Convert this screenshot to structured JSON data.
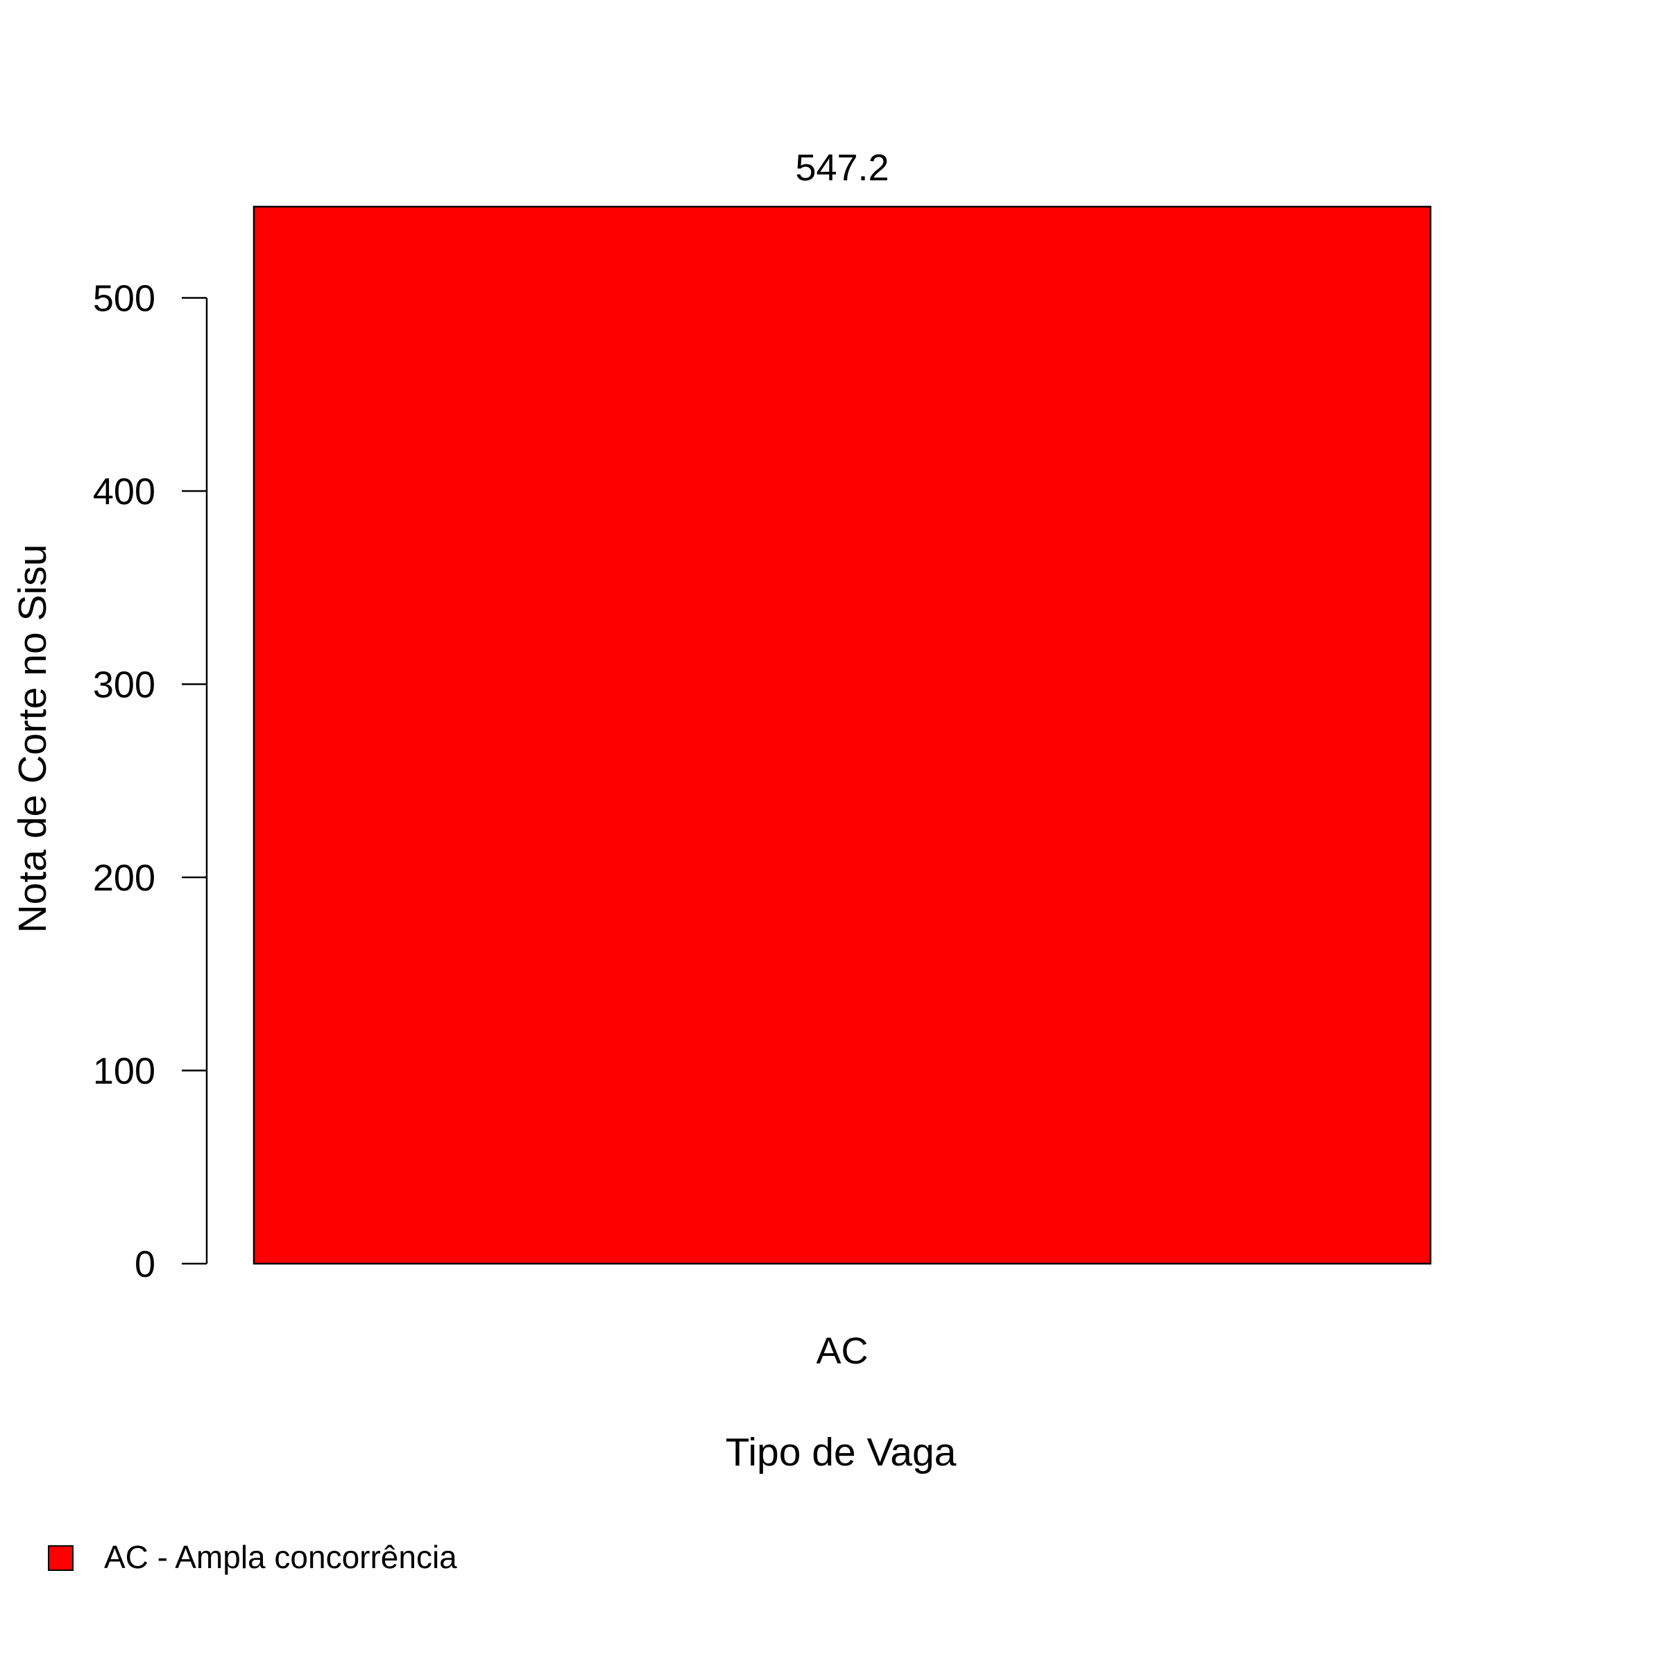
{
  "chart_data": {
    "type": "bar",
    "categories": [
      "AC"
    ],
    "values": [
      547.2
    ],
    "data_labels": [
      "547.2"
    ],
    "xlabel": "Tipo de Vaga",
    "ylabel": "Nota de Corte no Sisu",
    "ylim": [
      0,
      547.2
    ],
    "yticks": [
      0,
      100,
      200,
      300,
      400,
      500
    ],
    "ytick_labels": [
      "0",
      "100",
      "200",
      "300",
      "400",
      "500"
    ],
    "bar_color": "#ff0000",
    "grid": false,
    "legend": {
      "placement": "bottom-left",
      "entries": [
        {
          "label": "AC - Ampla concorrência",
          "color": "#ff0000"
        }
      ]
    }
  }
}
